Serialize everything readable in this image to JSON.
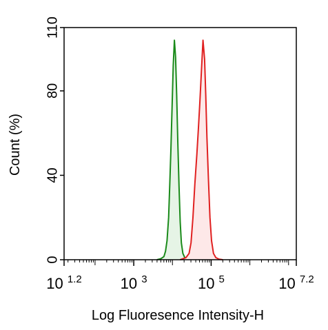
{
  "chart_data": {
    "type": "area",
    "title": "",
    "xlabel": "Log Fluoresence Intensity-H",
    "ylabel": "Count  (%)",
    "xscale": "log10",
    "xlim": [
      1.2,
      7.2
    ],
    "ylim": [
      0,
      110
    ],
    "x_ticks": [
      {
        "value": 1.2,
        "base": "10",
        "exp": "1.2"
      },
      {
        "value": 3,
        "base": "10",
        "exp": "3"
      },
      {
        "value": 5,
        "base": "10",
        "exp": "5"
      },
      {
        "value": 7.2,
        "base": "10",
        "exp": "7.2"
      }
    ],
    "y_ticks": [
      {
        "value": 0,
        "label": "0"
      },
      {
        "value": 40,
        "label": "40"
      },
      {
        "value": 80,
        "label": "80"
      },
      {
        "value": 110,
        "label": "110"
      }
    ],
    "grid": false,
    "legend": "none",
    "series": [
      {
        "color": "#1a8a1a",
        "fill": "#e6f4e6",
        "x": [
          3.6,
          3.7,
          3.78,
          3.82,
          3.86,
          3.9,
          3.93,
          3.96,
          3.99,
          4.02,
          4.05,
          4.08,
          4.11,
          4.14,
          4.17,
          4.2,
          4.23,
          4.27,
          4.32,
          4.4,
          4.55,
          4.7
        ],
        "y": [
          0,
          0.5,
          1.5,
          4,
          9,
          20,
          35,
          52,
          72,
          92,
          104,
          96,
          78,
          55,
          35,
          18,
          8,
          3,
          1,
          0.5,
          1,
          0
        ]
      },
      {
        "color": "#e02020",
        "fill": "#fde8e8",
        "x": [
          4.2,
          4.35,
          4.43,
          4.48,
          4.53,
          4.58,
          4.63,
          4.67,
          4.71,
          4.75,
          4.79,
          4.83,
          4.86,
          4.89,
          4.93,
          4.97,
          5.01,
          5.06,
          5.12,
          5.2,
          5.3
        ],
        "y": [
          0,
          1,
          3,
          8,
          20,
          36,
          50,
          62,
          75,
          90,
          104,
          95,
          78,
          58,
          38,
          20,
          9,
          3,
          1,
          0.3,
          0
        ]
      }
    ]
  }
}
